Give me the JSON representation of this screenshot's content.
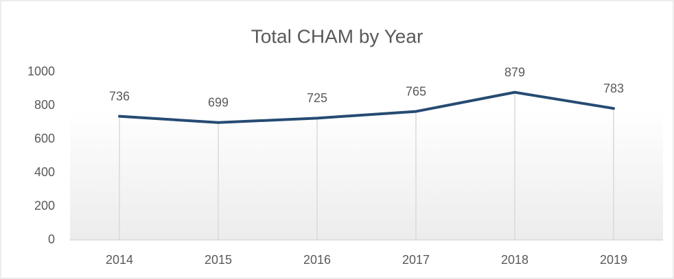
{
  "chart_data": {
    "type": "line",
    "title": "Total CHAM by Year",
    "categories": [
      "2014",
      "2015",
      "2016",
      "2017",
      "2018",
      "2019"
    ],
    "values": [
      736,
      699,
      725,
      765,
      879,
      783
    ],
    "color": "#264b73",
    "ylim": [
      0,
      1000
    ],
    "yticks": [
      0,
      200,
      400,
      600,
      800,
      1000
    ]
  }
}
